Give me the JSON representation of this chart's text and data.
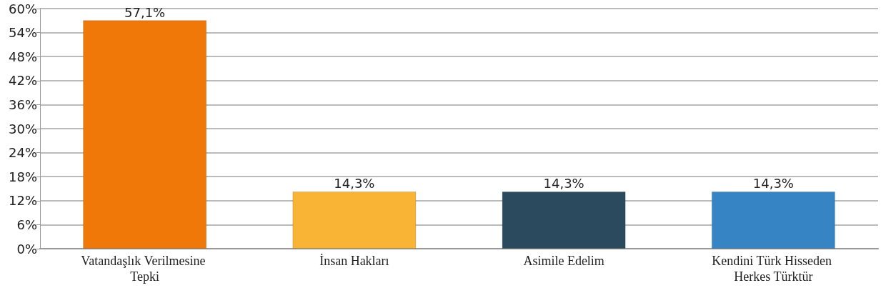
{
  "chart_data": {
    "type": "bar",
    "categories": [
      "Vatandaşlık Verilmesine Tepki",
      "İnsan Hakları",
      "Asimile Edelim",
      "Kendini Türk Hisseden Herkes Türktür"
    ],
    "values": [
      57.1,
      14.3,
      14.3,
      14.3
    ],
    "colors": [
      "#f07809",
      "#f9b335",
      "#2c4a5e",
      "#3784c4"
    ],
    "value_labels": [
      "57,1%",
      "14,3%",
      "14,3%",
      "14,3%"
    ],
    "ylim": [
      0,
      60
    ],
    "yticks": [
      {
        "value": 0,
        "label": "0%"
      },
      {
        "value": 6,
        "label": "6%"
      },
      {
        "value": 12,
        "label": "12%"
      },
      {
        "value": 18,
        "label": "18%"
      },
      {
        "value": 24,
        "label": "24%"
      },
      {
        "value": 30,
        "label": "30%"
      },
      {
        "value": 36,
        "label": "36%"
      },
      {
        "value": 42,
        "label": "42%"
      },
      {
        "value": 48,
        "label": "48%"
      },
      {
        "value": 54,
        "label": "54%"
      },
      {
        "value": 60,
        "label": "60%"
      }
    ],
    "grid": "y"
  }
}
